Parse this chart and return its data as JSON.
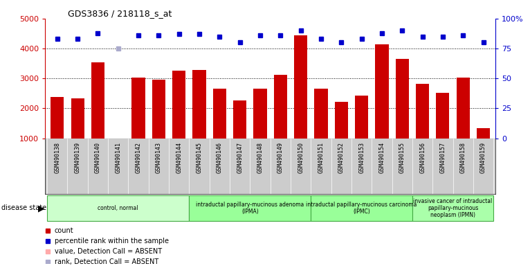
{
  "title": "GDS3836 / 218118_s_at",
  "samples": [
    "GSM490138",
    "GSM490139",
    "GSM490140",
    "GSM490141",
    "GSM490142",
    "GSM490143",
    "GSM490144",
    "GSM490145",
    "GSM490146",
    "GSM490147",
    "GSM490148",
    "GSM490149",
    "GSM490150",
    "GSM490151",
    "GSM490152",
    "GSM490153",
    "GSM490154",
    "GSM490155",
    "GSM490156",
    "GSM490157",
    "GSM490158",
    "GSM490159"
  ],
  "counts": [
    2380,
    2340,
    3540,
    1000,
    3040,
    2960,
    3270,
    3280,
    2660,
    2260,
    2650,
    3120,
    4440,
    2650,
    2220,
    2420,
    4150,
    3660,
    2820,
    2530,
    3020,
    1340
  ],
  "percentile_ranks": [
    83,
    83,
    88,
    75,
    86,
    86,
    87,
    87,
    85,
    80,
    86,
    86,
    90,
    83,
    80,
    83,
    88,
    90,
    85,
    85,
    86,
    80
  ],
  "absent_value_indices": [
    3
  ],
  "absent_rank_indices": [
    3
  ],
  "ylim_left": [
    1000,
    5000
  ],
  "ylim_right": [
    0,
    100
  ],
  "yticks_left": [
    1000,
    2000,
    3000,
    4000,
    5000
  ],
  "yticks_right": [
    0,
    25,
    50,
    75,
    100
  ],
  "ytick_right_labels": [
    "0",
    "25",
    "50",
    "75",
    "100%"
  ],
  "bar_color": "#cc0000",
  "absent_bar_color": "#ffaaaa",
  "dot_color": "#0000cc",
  "absent_dot_color": "#aaaacc",
  "plot_bg_color": "#ffffff",
  "tick_bg_color": "#cccccc",
  "groups": [
    {
      "label": "control, normal",
      "start": 0,
      "end": 7,
      "color": "#ccffcc"
    },
    {
      "label": "intraductal papillary-mucinous adenoma\n(IPMA)",
      "start": 7,
      "end": 13,
      "color": "#99ff99"
    },
    {
      "label": "intraductal papillary-mucinous carcinoma\n(IPMC)",
      "start": 13,
      "end": 18,
      "color": "#99ff99"
    },
    {
      "label": "invasive cancer of intraductal\npapillary-mucinous\nneoplasm (IPMN)",
      "start": 18,
      "end": 22,
      "color": "#aaffaa"
    }
  ],
  "gridline_color": "#000000",
  "left_label_color": "#cc0000",
  "right_label_color": "#0000cc",
  "legend_items": [
    {
      "label": "count",
      "color": "#cc0000"
    },
    {
      "label": "percentile rank within the sample",
      "color": "#0000cc"
    },
    {
      "label": "value, Detection Call = ABSENT",
      "color": "#ffaaaa"
    },
    {
      "label": "rank, Detection Call = ABSENT",
      "color": "#aaaacc"
    }
  ]
}
